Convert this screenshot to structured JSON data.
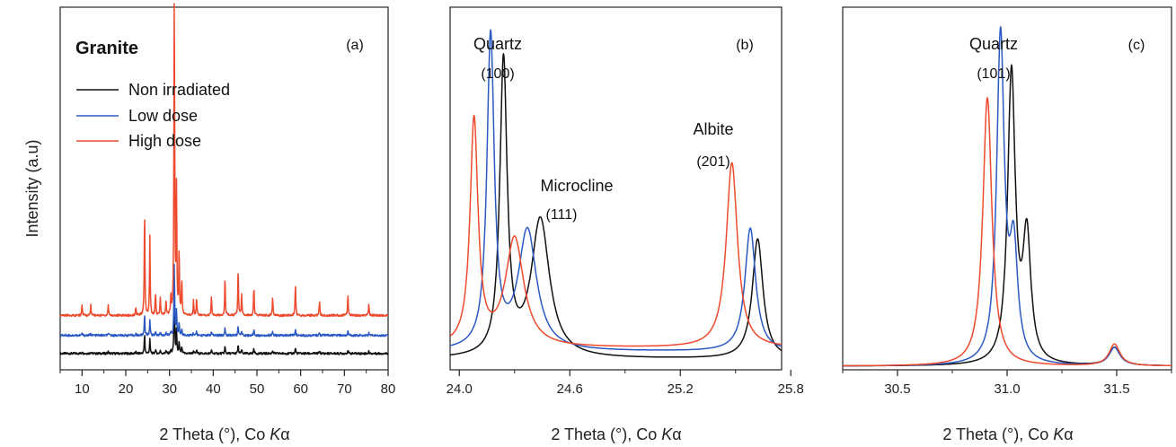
{
  "figure": {
    "ylabel": "Intensity (a.u)",
    "sample": "Granite",
    "legend": [
      "Non irradiated",
      "Low dose",
      "High dose"
    ],
    "colors": {
      "Non irradiated": "#111111",
      "Low dose": "#2b59c3",
      "High dose": "#ee4a2d"
    }
  },
  "chart_data": [
    {
      "type": "line",
      "panel": "(a)",
      "xlabel_prefix": "2 Theta (°), Co ",
      "xlabel_italic": "K",
      "xlabel_suffix": "α",
      "xlim": [
        5,
        80
      ],
      "xticks": [
        10,
        20,
        30,
        40,
        50,
        60,
        70,
        80
      ],
      "ylim": [
        0,
        100
      ],
      "peaks": [
        [
          24.3,
          0.3
        ],
        [
          25.5,
          0.22
        ],
        [
          26.8,
          0.06
        ],
        [
          27.9,
          0.05
        ],
        [
          29.2,
          0.04
        ],
        [
          30.3,
          0.05
        ],
        [
          31.1,
          1.0
        ],
        [
          31.6,
          0.35
        ],
        [
          32.2,
          0.18
        ],
        [
          32.8,
          0.1
        ],
        [
          35.5,
          0.04
        ],
        [
          36.2,
          0.05
        ],
        [
          39.6,
          0.05
        ],
        [
          42.7,
          0.11
        ],
        [
          45.7,
          0.13
        ],
        [
          46.5,
          0.06
        ],
        [
          49.3,
          0.08
        ],
        [
          53.6,
          0.05
        ],
        [
          58.8,
          0.09
        ],
        [
          64.3,
          0.04
        ],
        [
          70.8,
          0.06
        ],
        [
          75.6,
          0.03
        ],
        [
          10.0,
          0.03
        ],
        [
          12.0,
          0.03
        ],
        [
          16.0,
          0.03
        ],
        [
          22.3,
          0.02
        ]
      ],
      "series": [
        {
          "name": "Non irradiated",
          "baseline": 4.5,
          "scale": 18
        },
        {
          "name": "Low dose",
          "baseline": 9.5,
          "scale": 20
        },
        {
          "name": "High dose",
          "baseline": 15.0,
          "scale": 100
        }
      ]
    },
    {
      "type": "line",
      "panel": "(b)",
      "xlabel_prefix": "2 Theta (°), Co ",
      "xlabel_italic": "K",
      "xlabel_suffix": "α",
      "xlim": [
        23.95,
        25.75
      ],
      "xticks": [
        24.0,
        24.6,
        25.2,
        25.8
      ],
      "ylim": [
        0,
        100
      ],
      "annotations": [
        {
          "text": "Quartz",
          "sub": "(100)"
        },
        {
          "text": "Microcline",
          "sub": "(111)"
        },
        {
          "text": "Albite",
          "sub": "(201)"
        }
      ],
      "series": [
        {
          "name": "Non irradiated",
          "baseline": 3,
          "peaks": [
            [
              24.24,
              81,
              0.024
            ],
            [
              24.44,
              38,
              0.06
            ],
            [
              25.62,
              33,
              0.035
            ]
          ]
        },
        {
          "name": "Low dose",
          "baseline": 5,
          "peaks": [
            [
              24.17,
              86,
              0.024
            ],
            [
              24.37,
              33,
              0.06
            ],
            [
              25.58,
              34,
              0.035
            ]
          ]
        },
        {
          "name": "High dose",
          "baseline": 6,
          "peaks": [
            [
              24.08,
              62,
              0.026
            ],
            [
              24.3,
              30,
              0.06
            ],
            [
              25.48,
              51,
              0.037
            ]
          ]
        }
      ]
    },
    {
      "type": "line",
      "panel": "(c)",
      "xlabel_prefix": "2 Theta (°), Co ",
      "xlabel_italic": "K",
      "xlabel_suffix": "α",
      "xlim": [
        30.25,
        31.75
      ],
      "xticks": [
        30.5,
        31.0,
        31.5
      ],
      "ylim": [
        0,
        100
      ],
      "annotations": [
        {
          "text": "Quartz",
          "sub": "(101)"
        }
      ],
      "series": [
        {
          "name": "Non irradiated",
          "baseline": 1,
          "peaks": [
            [
              31.02,
              80,
              0.021
            ],
            [
              31.09,
              34,
              0.022
            ],
            [
              31.49,
              5,
              0.03
            ]
          ]
        },
        {
          "name": "Low dose",
          "baseline": 1,
          "peaks": [
            [
              30.97,
              90,
              0.021
            ],
            [
              31.03,
              30,
              0.022
            ],
            [
              31.49,
              5,
              0.03
            ]
          ]
        },
        {
          "name": "High dose",
          "baseline": 1,
          "peaks": [
            [
              30.91,
              74,
              0.025
            ],
            [
              31.49,
              6,
              0.03
            ]
          ]
        }
      ]
    }
  ]
}
